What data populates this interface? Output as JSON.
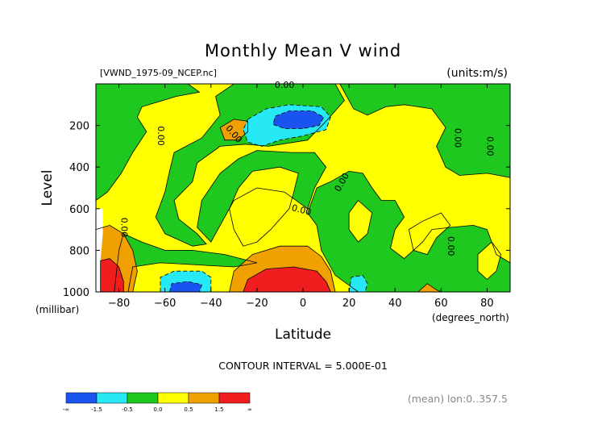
{
  "chart_data": {
    "type": "contour",
    "title": "Monthly Mean V wind",
    "file_label": "[VWND_1975-09_NCEP.nc]",
    "units_label": "(units:m/s)",
    "xlabel": "Latitude",
    "x_units": "(degrees_north)",
    "ylabel": "Level",
    "y_units": "(millibar)",
    "x_ticks": [
      -80,
      -60,
      -40,
      -20,
      0,
      20,
      40,
      60,
      80
    ],
    "y_ticks": [
      200,
      400,
      600,
      800,
      1000
    ],
    "xlim": [
      -90,
      90
    ],
    "ylim": [
      0,
      1000
    ],
    "y_inverted": true,
    "contour_interval_text": "CONTOUR INTERVAL = 5.000E-01",
    "footnote": "(mean) lon:0..357.5",
    "contour_labels": [
      {
        "text": "0.00",
        "lat": -8,
        "lev": 0
      },
      {
        "text": "0.00",
        "lat": -31,
        "lev": 250
      },
      {
        "text": "0.00",
        "lat": -63,
        "lev": 250
      },
      {
        "text": "0.00",
        "lat": -79,
        "lev": 690
      },
      {
        "text": "0.00",
        "lat": -1,
        "lev": 620
      },
      {
        "text": "0.00",
        "lat": 18,
        "lev": 480
      },
      {
        "text": "0.00",
        "lat": 66,
        "lev": 260
      },
      {
        "text": "0.00",
        "lat": 80,
        "lev": 300
      },
      {
        "text": "0.00",
        "lat": 63,
        "lev": 780
      }
    ],
    "colorbar": {
      "colors": [
        "#1a54f0",
        "#27e8f5",
        "#1ec81e",
        "#ffff00",
        "#f0a000",
        "#f01e1e"
      ],
      "labels": [
        "-∞",
        "-1.5",
        "-0.5",
        "0.0",
        "0.5",
        "1.5",
        "∞"
      ]
    },
    "regions": [
      {
        "level": "neg_strong",
        "color": "#1a54f0",
        "desc": "core near -10..5 lat, 150-230 mb; near -55..-45 lat, 950-1000 mb"
      },
      {
        "level": "neg_weak",
        "color": "#27e8f5",
        "desc": "around -25..10 lat, 100-300 mb; -62..-40 lat, 900-1000 mb; 20..27 lat, 920-1000 mb"
      },
      {
        "level": "near_zero_neg",
        "color": "#1ec81e",
        "desc": "broad green areas"
      },
      {
        "level": "near_zero_pos",
        "color": "#ffff00",
        "desc": "broad yellow areas"
      },
      {
        "level": "pos_weak",
        "color": "#f0a000",
        "desc": "-35..-25 lat, 180-270 mb; -30..10 lat, 780-1000 mb; -90..-70 lat, 700-1000 mb"
      },
      {
        "level": "pos_strong",
        "color": "#f01e1e",
        "desc": "-25..10 lat, 880-1000 mb; -88..-78 lat, 850-1000 mb"
      }
    ]
  }
}
